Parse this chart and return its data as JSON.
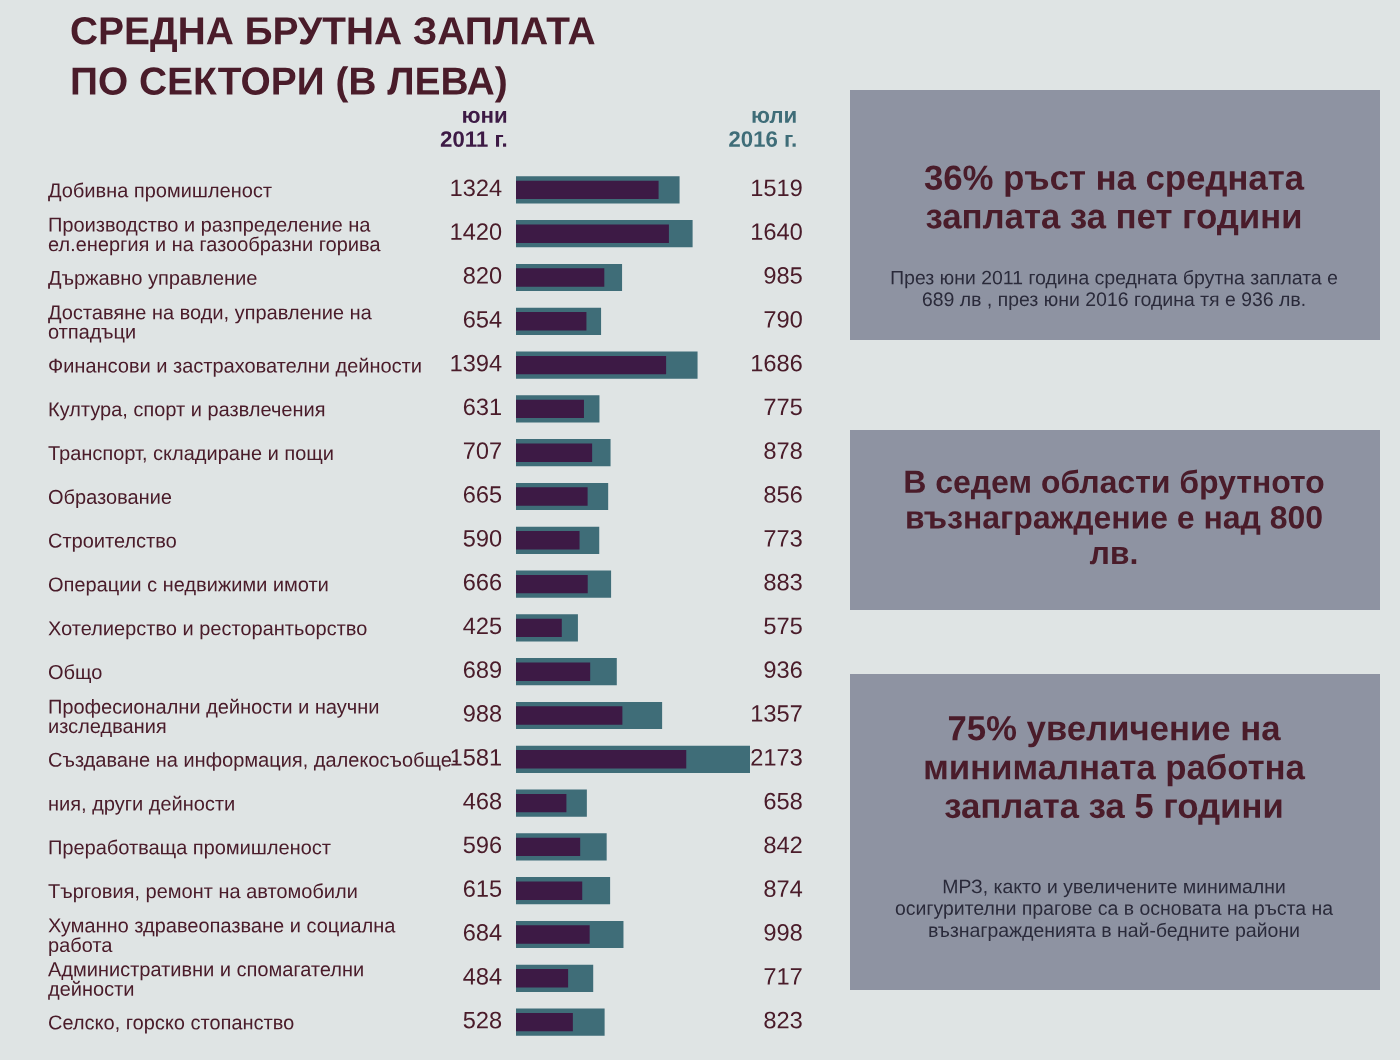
{
  "chart_data": {
    "type": "bar",
    "orientation": "horizontal",
    "title": "СРЕДНА БРУТНА ЗАПЛАТА\nПО СЕКТОРИ (В ЛЕВА)",
    "categories": [
      "Добивна промишленост",
      "Производство и разпределение на\nел.енергия и на газообразни горива",
      "Държавно управление",
      "Доставяне на води, управление на\nотпадъци",
      "Финансови и застрахователни дейности",
      "Култура, спорт и развлечения",
      "Транспорт, складиране и пощи",
      "Образование",
      "Строителство",
      "Операции с недвижими имоти",
      "Хотелиерство и ресторантьорство",
      "Общо",
      "Професионални дейности и научни\nизследвания",
      "Създаване на информация, далекосъобще-",
      "ния, други дейности",
      "Преработваща промишленост",
      "Търговия, ремонт на автомобили",
      "Хуманно здравеопазване и социална\nработа",
      "Административни и спомагателни\nдейности",
      "Селско, горско стопанство"
    ],
    "series": [
      {
        "name": "юли\n2016 г.",
        "color": "#3f6d78",
        "values": [
          1519,
          1640,
          985,
          790,
          1686,
          775,
          878,
          856,
          773,
          883,
          575,
          936,
          1357,
          2173,
          658,
          842,
          874,
          998,
          717,
          823
        ]
      },
      {
        "name": "юни\n2011 г.",
        "color": "#3d1a45",
        "values": [
          1324,
          1420,
          820,
          654,
          1394,
          631,
          707,
          665,
          590,
          666,
          425,
          689,
          988,
          1581,
          468,
          596,
          615,
          684,
          484,
          528
        ]
      }
    ],
    "data_labels": true,
    "annotations": [
      "36% ръст на средната\nзаплата за пет години",
      "През юни 2011 година средната брутна заплата е\n689 лв , през юни 2016 година тя е 936 лв.",
      "В седем области брутното\nвъзнаграждение е над 800\nлв.",
      "75% увеличение на\nминималната работна\nзаплата за 5 години",
      "МРЗ, както и увеличените минимални\nосигурителни прагове са в основата на ръста на\nвъзнагражденията в най-бедните райони"
    ]
  }
}
